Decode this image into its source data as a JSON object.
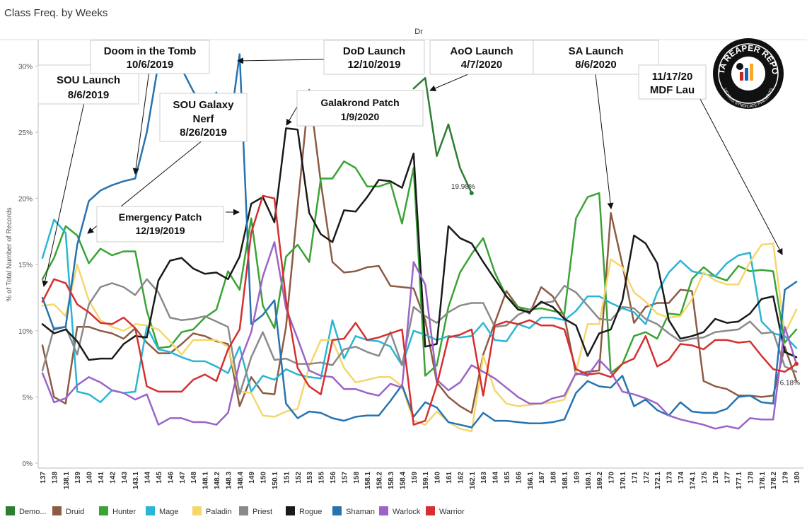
{
  "page": {
    "title": "Class Freq. by Weeks",
    "column_header": "Dr"
  },
  "logo": {
    "top_text": "DATA REAPER REPORT",
    "bottom_text": "VICIOUS SYNDICATE PRESENTS"
  },
  "chart_data": {
    "type": "line",
    "ylabel": "% of Total Number of Records",
    "ylim": [
      0,
      32
    ],
    "yticks": [
      0,
      5,
      10,
      15,
      20,
      25,
      30
    ],
    "ytick_labels": [
      "0%",
      "5%",
      "10%",
      "15%",
      "20%",
      "25%",
      "30%"
    ],
    "grid": false,
    "legend_position": "bottom",
    "x": [
      "137",
      "138",
      "138.1",
      "139",
      "140",
      "141",
      "142",
      "143",
      "143.1",
      "144",
      "145",
      "146",
      "147",
      "148",
      "148.1",
      "148.2",
      "148.3",
      "148.4",
      "149",
      "150",
      "150.1",
      "151",
      "152",
      "153",
      "155",
      "156",
      "157",
      "158",
      "158.1",
      "158.2",
      "158.3",
      "158.4",
      "159",
      "159.1",
      "160",
      "161",
      "162",
      "162.1",
      "163",
      "164",
      "165",
      "166",
      "166.1",
      "167",
      "168",
      "168.1",
      "169",
      "169.1",
      "169.2",
      "170",
      "170.1",
      "171",
      "172",
      "172.1",
      "173",
      "174",
      "174.1",
      "175",
      "176",
      "177",
      "177.1",
      "178",
      "178.1",
      "178.2",
      "179",
      "180"
    ],
    "series": [
      {
        "name": "Demo...",
        "color": "#2e7d32",
        "values": [
          null,
          null,
          null,
          null,
          null,
          null,
          null,
          null,
          null,
          null,
          null,
          null,
          null,
          null,
          null,
          null,
          null,
          null,
          null,
          null,
          null,
          null,
          null,
          null,
          null,
          null,
          null,
          null,
          null,
          null,
          null,
          null,
          28.3,
          29.1,
          23.2,
          25.6,
          22.3,
          20.4,
          null,
          null,
          null,
          null,
          null,
          null,
          null,
          null,
          null,
          null,
          null,
          null,
          null,
          null,
          null,
          null,
          null,
          null,
          null,
          null,
          null,
          null,
          null,
          null,
          null,
          null,
          null,
          null
        ]
      },
      {
        "name": "Druid",
        "color": "#8d5b43",
        "values": [
          8.9,
          5.0,
          4.5,
          10.3,
          10.3,
          10.0,
          9.8,
          9.4,
          10.2,
          9.1,
          8.3,
          8.3,
          9.0,
          9.8,
          9.6,
          9.2,
          9.0,
          4.3,
          6.5,
          5.3,
          5.2,
          10.3,
          19.4,
          28.2,
          21.2,
          15.2,
          14.4,
          14.5,
          14.8,
          14.9,
          13.4,
          13.3,
          13.2,
          10.8,
          6.1,
          5.0,
          4.3,
          3.8,
          8.2,
          10.6,
          13.0,
          11.8,
          11.3,
          13.3,
          12.6,
          11.1,
          6.7,
          6.9,
          7.0,
          18.9,
          15.0,
          10.6,
          11.8,
          12.1,
          12.1,
          13.1,
          13.0,
          6.2,
          5.8,
          5.6,
          5.1,
          5.1,
          5.0,
          5.1,
          8.8,
          6.2
        ]
      },
      {
        "name": "Hunter",
        "color": "#3aa335",
        "values": [
          13.9,
          15.5,
          17.9,
          17.2,
          15.1,
          16.2,
          15.7,
          16.0,
          16.0,
          11.5,
          8.7,
          8.8,
          9.9,
          10.1,
          11.0,
          11.6,
          14.5,
          13.1,
          18.5,
          11.9,
          10.2,
          15.6,
          16.5,
          15.2,
          21.5,
          21.5,
          22.8,
          22.3,
          20.9,
          20.9,
          21.2,
          18.1,
          22.3,
          6.6,
          7.4,
          11.8,
          14.4,
          15.8,
          17.0,
          14.4,
          12.6,
          11.8,
          11.6,
          11.7,
          11.5,
          11.3,
          18.5,
          20.1,
          20.4,
          6.8,
          7.5,
          9.6,
          9.9,
          9.4,
          11.3,
          11.2,
          13.9,
          14.8,
          14.1,
          13.8,
          14.9,
          14.5,
          14.6,
          14.5,
          9.1,
          10.1
        ]
      },
      {
        "name": "Mage",
        "color": "#29b6d4",
        "values": [
          15.5,
          18.4,
          17.4,
          5.4,
          5.2,
          4.6,
          5.5,
          5.3,
          5.4,
          10.3,
          8.6,
          8.4,
          8.0,
          7.7,
          7.7,
          7.3,
          6.8,
          8.8,
          5.4,
          6.6,
          6.3,
          7.1,
          6.7,
          6.5,
          6.4,
          10.8,
          7.9,
          9.6,
          9.3,
          9.2,
          8.8,
          7.4,
          10.0,
          9.7,
          9.3,
          9.6,
          9.5,
          9.6,
          10.6,
          9.3,
          9.2,
          10.5,
          10.2,
          11.0,
          11.0,
          10.8,
          11.5,
          12.6,
          12.6,
          12.1,
          11.7,
          11.4,
          10.5,
          12.9,
          14.4,
          15.3,
          14.5,
          14.3,
          14.1,
          15.1,
          15.7,
          15.9,
          10.7,
          9.8,
          9.6,
          8.7
        ]
      },
      {
        "name": "Paladin",
        "color": "#f5d76e",
        "values": [
          11.9,
          12.0,
          11.1,
          15.0,
          12.3,
          10.8,
          10.3,
          10.0,
          10.5,
          10.4,
          10.1,
          9.2,
          8.2,
          9.3,
          9.3,
          9.3,
          8.8,
          5.4,
          5.3,
          3.6,
          3.5,
          3.9,
          4.1,
          7.3,
          9.3,
          9.3,
          7.2,
          6.1,
          6.3,
          6.5,
          6.5,
          5.8,
          3.2,
          2.9,
          3.9,
          3.1,
          2.6,
          2.4,
          8.1,
          5.5,
          4.5,
          4.3,
          4.4,
          4.5,
          4.6,
          4.8,
          6.9,
          10.5,
          10.5,
          15.4,
          14.8,
          12.9,
          12.2,
          11.3,
          11.0,
          11.1,
          12.4,
          14.4,
          13.8,
          13.5,
          13.5,
          15.2,
          16.5,
          16.6,
          9.8,
          11.6
        ]
      },
      {
        "name": "Priest",
        "color": "#8a8a8a",
        "values": [
          7.0,
          10.2,
          10.3,
          8.2,
          12.0,
          13.3,
          13.6,
          13.3,
          12.7,
          13.9,
          12.9,
          11.0,
          10.8,
          10.9,
          11.1,
          10.7,
          10.3,
          5.2,
          8.0,
          9.9,
          7.8,
          7.9,
          7.5,
          7.5,
          7.6,
          7.4,
          8.6,
          8.8,
          8.4,
          8.1,
          9.9,
          7.4,
          11.8,
          11.1,
          10.6,
          11.4,
          11.9,
          12.1,
          12.1,
          10.3,
          10.4,
          11.2,
          11.6,
          12.1,
          12.2,
          13.4,
          12.9,
          11.9,
          10.9,
          10.8,
          11.8,
          11.7,
          10.9,
          10.5,
          9.8,
          9.2,
          9.4,
          9.5,
          9.9,
          10.0,
          10.1,
          10.7,
          9.8,
          9.9,
          7.3,
          6.9
        ]
      },
      {
        "name": "Rogue",
        "color": "#1a1a1a",
        "values": [
          10.5,
          9.8,
          10.1,
          9.2,
          7.8,
          7.9,
          7.9,
          9.0,
          9.6,
          9.5,
          13.8,
          15.3,
          15.5,
          14.7,
          14.3,
          14.4,
          13.9,
          15.6,
          19.6,
          20.1,
          18.2,
          25.3,
          25.2,
          18.9,
          17.3,
          16.7,
          19.1,
          19.0,
          20.1,
          21.4,
          21.3,
          20.8,
          23.4,
          8.8,
          9.0,
          17.9,
          17.0,
          16.6,
          15.2,
          13.9,
          12.6,
          11.6,
          11.4,
          12.2,
          11.8,
          10.9,
          10.4,
          8.1,
          9.8,
          10.1,
          12.3,
          17.2,
          16.6,
          15.1,
          10.8,
          9.4,
          9.6,
          9.9,
          10.9,
          10.6,
          10.7,
          11.3,
          12.4,
          12.6,
          8.4,
          8.0
        ]
      },
      {
        "name": "Shaman",
        "color": "#2673b0",
        "values": [
          12.5,
          10.1,
          10.3,
          16.5,
          19.8,
          20.6,
          21.0,
          21.3,
          21.5,
          25.0,
          30.2,
          30.4,
          29.8,
          28.1,
          26.9,
          28.0,
          24.4,
          30.9,
          10.5,
          11.2,
          12.3,
          4.5,
          3.4,
          3.9,
          3.8,
          3.4,
          3.2,
          3.5,
          3.6,
          3.6,
          4.7,
          5.9,
          3.5,
          4.6,
          4.2,
          3.1,
          2.9,
          2.7,
          3.8,
          3.2,
          3.2,
          3.1,
          3.0,
          3.0,
          3.1,
          3.3,
          5.3,
          6.2,
          5.8,
          5.7,
          6.6,
          4.3,
          4.8,
          4.0,
          3.6,
          4.6,
          3.9,
          3.8,
          3.8,
          4.1,
          5.0,
          5.1,
          4.6,
          4.5,
          13.1,
          13.7
        ]
      },
      {
        "name": "Warlock",
        "color": "#9b64c8",
        "values": [
          6.8,
          4.6,
          4.9,
          5.9,
          6.5,
          6.1,
          5.5,
          5.3,
          4.8,
          5.2,
          2.9,
          3.4,
          3.4,
          3.1,
          3.1,
          2.9,
          3.8,
          7.6,
          9.9,
          14.1,
          16.7,
          11.7,
          9.4,
          7.0,
          6.6,
          6.5,
          5.6,
          5.6,
          5.3,
          5.1,
          6.0,
          5.7,
          15.2,
          13.5,
          6.3,
          5.5,
          6.1,
          7.4,
          6.9,
          6.4,
          5.7,
          5.0,
          4.5,
          4.5,
          4.9,
          5.1,
          6.8,
          6.6,
          7.8,
          6.9,
          5.4,
          5.2,
          4.9,
          4.5,
          3.6,
          3.3,
          3.1,
          2.9,
          2.6,
          2.8,
          2.6,
          3.4,
          3.3,
          3.3,
          10.3,
          7.5
        ]
      },
      {
        "name": "Warrior",
        "color": "#d62f2f",
        "values": [
          12.2,
          13.9,
          13.6,
          12.0,
          11.4,
          10.6,
          10.5,
          11.0,
          10.2,
          5.8,
          5.4,
          5.4,
          5.4,
          6.3,
          6.7,
          6.2,
          8.6,
          10.1,
          17.4,
          20.2,
          20.0,
          12.3,
          7.2,
          5.8,
          5.2,
          9.3,
          9.4,
          10.6,
          9.3,
          9.5,
          9.8,
          10.1,
          2.9,
          3.2,
          5.9,
          9.5,
          9.7,
          10.1,
          5.1,
          10.4,
          10.7,
          10.5,
          10.8,
          10.4,
          10.4,
          10.1,
          7.1,
          6.7,
          6.8,
          6.5,
          7.5,
          7.9,
          9.6,
          7.3,
          7.8,
          9.0,
          8.9,
          8.6,
          9.3,
          9.3,
          9.1,
          9.2,
          8.1,
          7.1,
          6.9,
          7.5
        ]
      }
    ],
    "data_labels": [
      {
        "series": "Demo...",
        "text": "19.98%"
      },
      {
        "series": "Warrior",
        "text": "6.18%"
      }
    ],
    "annotations": [
      {
        "id": "sou-launch",
        "lines": [
          "SOU Launch",
          "8/6/2019"
        ]
      },
      {
        "id": "doom-tomb",
        "lines": [
          "Doom in the Tomb",
          "10/6/2019"
        ]
      },
      {
        "id": "sou-galaxy-nerf",
        "lines": [
          "SOU Galaxy",
          "Nerf",
          "8/26/2019"
        ]
      },
      {
        "id": "emergency-patch",
        "lines": [
          "Emergency Patch",
          "12/19/2019"
        ]
      },
      {
        "id": "dod-launch",
        "lines": [
          "DoD Launch",
          "12/10/2019"
        ]
      },
      {
        "id": "galakrond-patch",
        "lines": [
          "Galakrond Patch",
          "1/9/2020"
        ]
      },
      {
        "id": "aoo-launch",
        "lines": [
          "AoO Launch",
          "4/7/2020"
        ]
      },
      {
        "id": "sa-launch",
        "lines": [
          "SA Launch",
          "8/6/2020"
        ]
      },
      {
        "id": "mdf-launch",
        "lines": [
          "11/17/20",
          "MDF Lau"
        ]
      }
    ]
  }
}
